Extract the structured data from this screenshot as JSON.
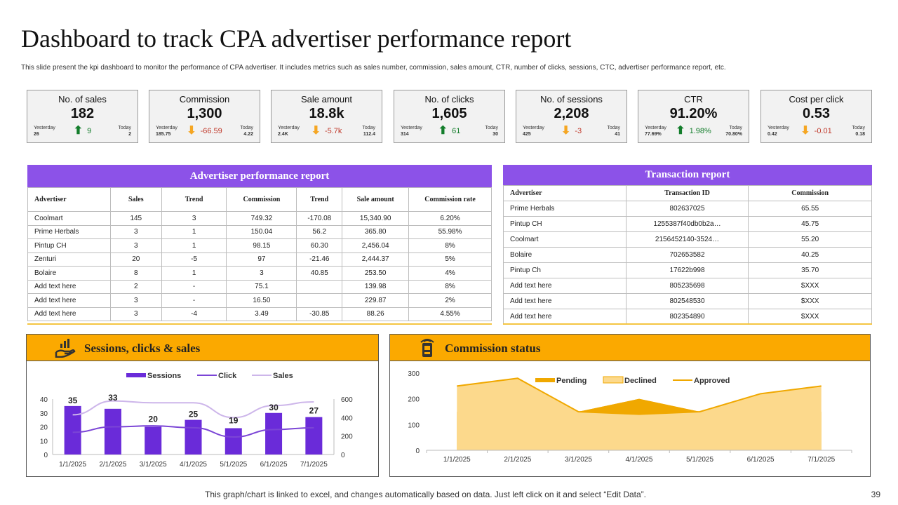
{
  "header": {
    "title": "Dashboard to track CPA advertiser performance report",
    "subtitle": "This slide present the kpi dashboard to monitor the performance of CPA advertiser. It includes metrics such as sales number, commission, sales amount, CTR, number of clicks, sessions, CTC, advertiser performance report, etc."
  },
  "kpis": [
    {
      "label": "No. of sales",
      "value": "182",
      "yesterday_label": "Yesterday",
      "yesterday": "26",
      "today_label": "Today",
      "today": "2",
      "delta": "9",
      "direction": "up"
    },
    {
      "label": "Commission",
      "value": "1,300",
      "yesterday_label": "Yesterday",
      "yesterday": "185.75",
      "today_label": "Today",
      "today": "4.22",
      "delta": "-66.59",
      "direction": "down"
    },
    {
      "label": "Sale amount",
      "value": "18.8k",
      "yesterday_label": "Yesterday",
      "yesterday": "2.4K",
      "today_label": "Today",
      "today": "112.4",
      "delta": "-5.7k",
      "direction": "down"
    },
    {
      "label": "No. of clicks",
      "value": "1,605",
      "yesterday_label": "Yesterday",
      "yesterday": "314",
      "today_label": "Today",
      "today": "30",
      "delta": "61",
      "direction": "up"
    },
    {
      "label": "No. of sessions",
      "value": "2,208",
      "yesterday_label": "Yesterday",
      "yesterday": "425",
      "today_label": "Today",
      "today": "41",
      "delta": "-3",
      "direction": "down"
    },
    {
      "label": "CTR",
      "value": "91.20%",
      "yesterday_label": "Yesterday",
      "yesterday": "77.69%",
      "today_label": "Today",
      "today": "70.80%",
      "delta": "1.98%",
      "direction": "up"
    },
    {
      "label": "Cost per click",
      "value": "0.53",
      "yesterday_label": "Yesterday",
      "yesterday": "0.42",
      "today_label": "Today",
      "today": "0.18",
      "delta": "-0.01",
      "direction": "down"
    }
  ],
  "advertiser_report": {
    "title": "Advertiser performance  report",
    "columns": [
      "Advertiser",
      "Sales",
      "Trend",
      "Commission",
      "Trend",
      "Sale amount",
      "Commission rate"
    ],
    "rows": [
      [
        "Coolmart",
        "145",
        "3",
        "749.32",
        "-170.08",
        "15,340.90",
        "6.20%"
      ],
      [
        "Prime Herbals",
        "3",
        "1",
        "150.04",
        "56.2",
        "365.80",
        "55.98%"
      ],
      [
        "Pintup CH",
        "3",
        "1",
        "98.15",
        "60.30",
        "2,456.04",
        "8%"
      ],
      [
        "Zenturi",
        "20",
        "-5",
        "97",
        "-21.46",
        "2,444.37",
        "5%"
      ],
      [
        "Bolaire",
        "8",
        "1",
        "3",
        "40.85",
        "253.50",
        "4%"
      ],
      [
        "Add text here",
        "2",
        "-",
        "75.1",
        "",
        "139.98",
        "8%"
      ],
      [
        "Add text here",
        "3",
        "-",
        "16.50",
        "",
        "229.87",
        "2%"
      ],
      [
        "Add text here",
        "3",
        "-4",
        "3.49",
        "-30.85",
        "88.26",
        "4.55%"
      ]
    ]
  },
  "transaction_report": {
    "title": "Transaction report",
    "columns": [
      "Advertiser",
      "Transaction ID",
      "Commission"
    ],
    "rows": [
      [
        "Prime Herbals",
        "802637025",
        "65.55"
      ],
      [
        "Pintup CH",
        "1255387f40db0b2a…",
        "45.75"
      ],
      [
        "Coolmart",
        "2156452140-3524…",
        "55.20"
      ],
      [
        "Bolaire",
        "702653582",
        "40.25"
      ],
      [
        "Pintup Ch",
        "17622b998",
        "35.70"
      ],
      [
        "Add text here",
        "805235698",
        "$XXX"
      ],
      [
        "Add text here",
        "802548530",
        "$XXX"
      ],
      [
        "Add text here",
        "802354890",
        "$XXX"
      ]
    ]
  },
  "chart_data": [
    {
      "type": "bar",
      "title": "Sessions, clicks & sales",
      "categories": [
        "1/1/2025",
        "2/1/2025",
        "3/1/2025",
        "4/1/2025",
        "5/1/2025",
        "6/1/2025",
        "7/1/2025"
      ],
      "series": [
        {
          "name": "Sessions",
          "type": "bar",
          "axis": "left",
          "values": [
            35,
            33,
            20,
            25,
            19,
            30,
            27
          ],
          "color": "#6a2bd9"
        },
        {
          "name": "Click",
          "type": "line",
          "axis": "right",
          "values": [
            240,
            300,
            310,
            290,
            190,
            270,
            290
          ],
          "color": "#7b45d6"
        },
        {
          "name": "Sales",
          "type": "line",
          "axis": "right",
          "values": [
            430,
            580,
            560,
            560,
            400,
            530,
            570
          ],
          "color": "#cdb6ea"
        }
      ],
      "ylim_left": [
        0,
        40
      ],
      "yticks_left": [
        "0",
        "10",
        "20",
        "30",
        "40"
      ],
      "ylim_right": [
        0,
        600
      ],
      "yticks_right": [
        "0",
        "200",
        "400",
        "600"
      ],
      "legend": "top"
    },
    {
      "type": "area",
      "title": "Commission status",
      "categories": [
        "1/1/2025",
        "2/1/2025",
        "3/1/2025",
        "4/1/2025",
        "5/1/2025",
        "6/1/2025",
        "7/1/2025"
      ],
      "series": [
        {
          "name": "Pending",
          "values": [
            150,
            150,
            150,
            200,
            150,
            150,
            150
          ],
          "color": "#f0a800"
        },
        {
          "name": "Declined",
          "values": [
            250,
            280,
            150,
            140,
            150,
            220,
            250
          ],
          "color": "#fcd98c"
        },
        {
          "name": "Approved",
          "values": [
            250,
            280,
            150,
            140,
            150,
            220,
            250
          ],
          "color": "#f0a800"
        }
      ],
      "ylim": [
        0,
        300
      ],
      "yticks": [
        "0",
        "100",
        "200",
        "300"
      ],
      "legend": "top"
    }
  ],
  "footer": {
    "note": "This graph/chart is linked to excel, and changes automatically based on data. Just left click on it and select “Edit Data”.",
    "page": "39"
  },
  "colors": {
    "purple": "#8c52e8",
    "orange": "#fba900",
    "up": "#137d2b",
    "down": "#f5a623",
    "neg": "#c0392b"
  }
}
